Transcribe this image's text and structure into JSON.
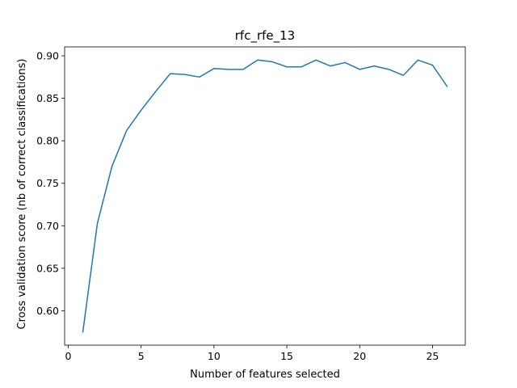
{
  "chart_data": {
    "type": "line",
    "title": "rfc_rfe_13",
    "xlabel": "Number of features selected",
    "ylabel": "Cross validation score (nb of correct classifications)",
    "xlim": [
      -0.25,
      27.25
    ],
    "ylim": [
      0.5595,
      0.9105
    ],
    "x_ticks": [
      0,
      5,
      10,
      15,
      20,
      25
    ],
    "x_tick_labels": [
      "0",
      "5",
      "10",
      "15",
      "20",
      "25"
    ],
    "y_ticks": [
      0.6,
      0.65,
      0.7,
      0.75,
      0.8,
      0.85,
      0.9
    ],
    "y_tick_labels": [
      "0.60",
      "0.65",
      "0.70",
      "0.75",
      "0.80",
      "0.85",
      "0.90"
    ],
    "grid": false,
    "series": [
      {
        "color": "#1f77b4",
        "x": [
          1,
          2,
          3,
          4,
          5,
          6,
          7,
          8,
          9,
          10,
          11,
          12,
          13,
          14,
          15,
          16,
          17,
          18,
          19,
          20,
          21,
          22,
          23,
          24,
          25,
          26
        ],
        "y": [
          0.575,
          0.703,
          0.77,
          0.812,
          0.836,
          0.858,
          0.879,
          0.878,
          0.875,
          0.885,
          0.884,
          0.884,
          0.895,
          0.893,
          0.887,
          0.887,
          0.895,
          0.888,
          0.892,
          0.884,
          0.888,
          0.884,
          0.877,
          0.895,
          0.889,
          0.864
        ]
      }
    ]
  }
}
